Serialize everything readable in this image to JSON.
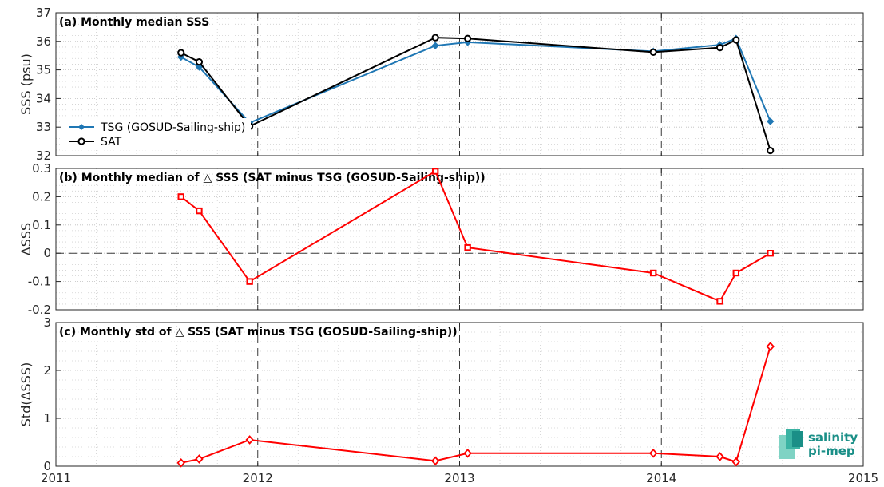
{
  "chart_data": [
    {
      "type": "line",
      "title": "(a) Monthly median SSS",
      "ylabel": "SSS (psu)",
      "xlim": [
        2011,
        2015
      ],
      "ylim": [
        32,
        37
      ],
      "yticks": [
        32,
        33,
        34,
        35,
        36,
        37
      ],
      "grid": true,
      "legend_position": "left",
      "series": [
        {
          "name": "TSG (GOSUD-Sailing-ship)",
          "color": "#1f77b4",
          "marker": "filled-diamond",
          "x": [
            2011.62,
            2011.71,
            2011.96,
            2012.88,
            2013.04,
            2013.96,
            2014.29,
            2014.37,
            2014.54
          ],
          "values": [
            35.45,
            35.1,
            33.15,
            35.85,
            35.97,
            35.65,
            35.88,
            36.1,
            33.2
          ]
        },
        {
          "name": "SAT",
          "color": "#000000",
          "marker": "open-circle",
          "x": [
            2011.62,
            2011.71,
            2011.96,
            2012.88,
            2013.04,
            2013.96,
            2014.29,
            2014.37,
            2014.54
          ],
          "values": [
            35.6,
            35.28,
            33.03,
            36.13,
            36.1,
            35.62,
            35.78,
            36.05,
            32.18
          ]
        }
      ]
    },
    {
      "type": "line",
      "title": "(b) Monthly median of △ SSS (SAT minus TSG (GOSUD-Sailing-ship))",
      "ylabel": "ΔSSS",
      "xlim": [
        2011,
        2015
      ],
      "ylim": [
        -0.2,
        0.3
      ],
      "yticks": [
        -0.2,
        -0.1,
        0,
        0.1,
        0.2,
        0.3
      ],
      "ytick_labels": [
        "-0.2",
        "-0.1",
        "0",
        "0.1",
        "0.2",
        "0.3"
      ],
      "grid": true,
      "reference_line": 0,
      "series": [
        {
          "color": "#ff0000",
          "marker": "open-square",
          "x": [
            2011.62,
            2011.71,
            2011.96,
            2012.88,
            2013.04,
            2013.96,
            2014.29,
            2014.37,
            2014.54
          ],
          "values": [
            0.2,
            0.15,
            -0.1,
            0.29,
            0.02,
            -0.07,
            -0.17,
            -0.07,
            0.0
          ]
        }
      ]
    },
    {
      "type": "line",
      "title": "(c) Monthly std of △ SSS (SAT minus TSG (GOSUD-Sailing-ship))",
      "ylabel": "Std(ΔSSS)",
      "xlim": [
        2011,
        2015
      ],
      "ylim": [
        0,
        3
      ],
      "yticks": [
        0,
        1,
        2,
        3
      ],
      "xticks": [
        2011,
        2012,
        2013,
        2014,
        2015
      ],
      "grid": true,
      "series": [
        {
          "color": "#ff0000",
          "marker": "open-diamond",
          "x": [
            2011.62,
            2011.71,
            2011.96,
            2012.88,
            2013.04,
            2013.96,
            2014.29,
            2014.37,
            2014.54
          ],
          "values": [
            0.07,
            0.15,
            0.55,
            0.11,
            0.27,
            0.27,
            0.2,
            0.09,
            2.5
          ]
        }
      ]
    }
  ],
  "logo": {
    "line1": "salinity",
    "line2": "pi-mep",
    "color": "#1a8f87"
  }
}
